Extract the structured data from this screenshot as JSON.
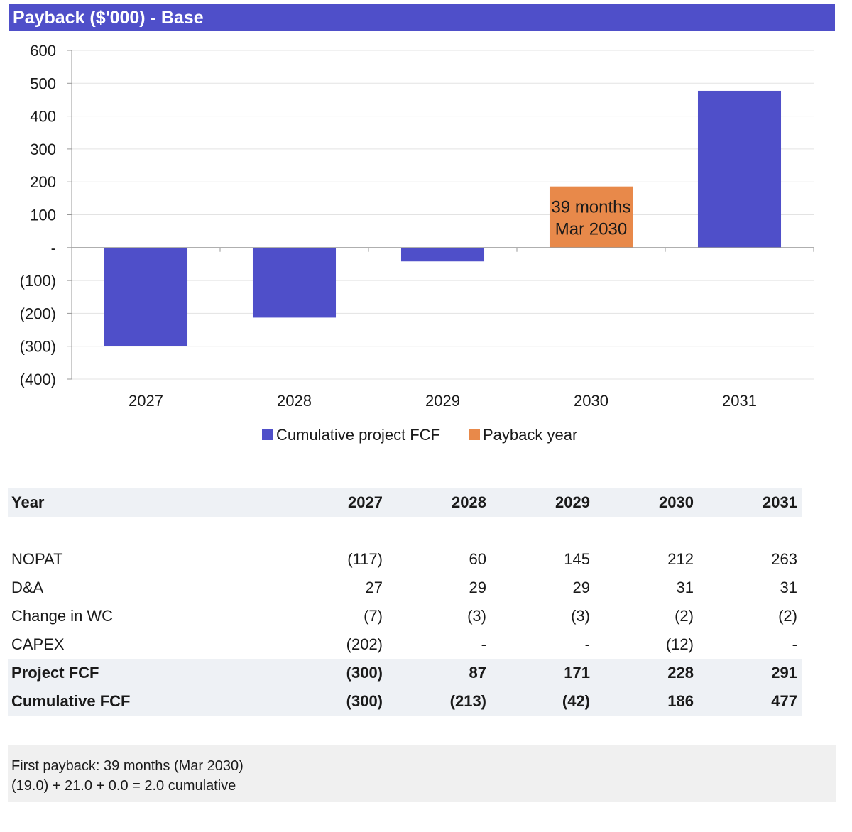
{
  "title": "Payback ($'000) - Base",
  "colors": {
    "accent": "#4f4fc9",
    "payback": "#e8894a"
  },
  "chart_data": {
    "type": "bar",
    "categories": [
      "2027",
      "2028",
      "2029",
      "2030",
      "2031"
    ],
    "series": [
      {
        "name": "Cumulative project FCF",
        "values": [
          -300,
          -213,
          -42,
          0,
          477
        ],
        "color": "#4f4fc9"
      },
      {
        "name": "Payback year",
        "values": [
          0,
          0,
          0,
          186,
          0
        ],
        "color": "#e8894a"
      }
    ],
    "ylim": [
      -400,
      600
    ],
    "yticks": [
      600,
      500,
      400,
      300,
      200,
      100,
      0,
      -100,
      -200,
      -300,
      -400
    ],
    "ytick_labels": [
      "600",
      "500",
      "400",
      "300",
      "200",
      "100",
      "-",
      "(100)",
      "(200)",
      "(300)",
      "(400)"
    ],
    "annotation": {
      "category": "2030",
      "lines": [
        "39 months",
        "Mar 2030"
      ]
    },
    "grid": true,
    "legend": "bottom-center"
  },
  "table": {
    "header": {
      "label": "Year",
      "years": [
        "2027",
        "2028",
        "2029",
        "2030",
        "2031"
      ]
    },
    "rows": [
      {
        "label": "NOPAT",
        "values": [
          "(117)",
          "60",
          "145",
          "212",
          "263"
        ],
        "bold": false
      },
      {
        "label": "D&A",
        "values": [
          "27",
          "29",
          "29",
          "31",
          "31"
        ],
        "bold": false
      },
      {
        "label": "Change in WC",
        "values": [
          "(7)",
          "(3)",
          "(3)",
          "(2)",
          "(2)"
        ],
        "bold": false
      },
      {
        "label": "CAPEX",
        "values": [
          "(202)",
          "-",
          "-",
          "(12)",
          "-"
        ],
        "bold": false
      },
      {
        "label": "Project FCF",
        "values": [
          "(300)",
          "87",
          "171",
          "228",
          "291"
        ],
        "bold": true
      },
      {
        "label": "Cumulative FCF",
        "values": [
          "(300)",
          "(213)",
          "(42)",
          "186",
          "477"
        ],
        "bold": true
      }
    ]
  },
  "note": {
    "line1": "First payback: 39 months (Mar 2030)",
    "line2": "(19.0) + 21.0 + 0.0 = 2.0 cumulative"
  }
}
